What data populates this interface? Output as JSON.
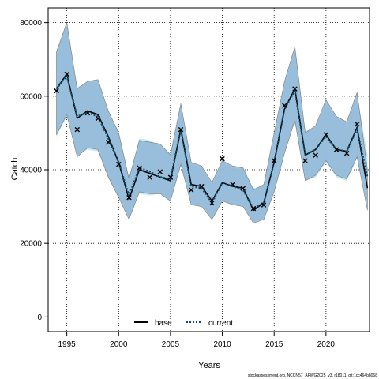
{
  "chart_data": {
    "type": "line",
    "title": "",
    "xlabel": "Years",
    "ylabel": "Catch",
    "xlim": [
      1993.2,
      2024.2
    ],
    "ylim": [
      -4000,
      84000
    ],
    "x_ticks": [
      1995,
      2000,
      2005,
      2010,
      2015,
      2020
    ],
    "y_ticks": [
      0,
      20000,
      40000,
      60000,
      80000
    ],
    "x_tick_labels": [
      "1995",
      "2000",
      "2005",
      "2010",
      "2015",
      "2020"
    ],
    "y_tick_labels": [
      "0",
      "20000",
      "40000",
      "60000",
      "80000"
    ],
    "grid": true,
    "legend_position": "bottom",
    "x": [
      1994,
      1995,
      1996,
      1997,
      1998,
      1999,
      2000,
      2001,
      2002,
      2003,
      2004,
      2005,
      2006,
      2007,
      2008,
      2009,
      2010,
      2011,
      2012,
      2013,
      2014,
      2015,
      2016,
      2017,
      2018,
      2019,
      2020,
      2021,
      2022,
      2023,
      2024
    ],
    "observed_marker": "×",
    "observed": [
      61500,
      66000,
      51000,
      55500,
      54000,
      47500,
      41500,
      32500,
      40500,
      38000,
      39500,
      38000,
      51000,
      34500,
      35500,
      31000,
      43000,
      36000,
      35000,
      29500,
      30500,
      42500,
      57500,
      62000,
      42500,
      44000,
      49500,
      45500,
      44500,
      52500,
      null
    ],
    "series": [
      {
        "name": "base",
        "color": "#000000",
        "style": "solid",
        "values": [
          62000,
          66000,
          54000,
          56000,
          55000,
          49000,
          42000,
          32000,
          40000,
          39000,
          38000,
          37000,
          51000,
          36000,
          35500,
          31500,
          36500,
          35500,
          35000,
          29000,
          31000,
          42000,
          56500,
          62000,
          44000,
          45500,
          49500,
          45500,
          45000,
          51500,
          35000
        ],
        "band_color": "#8fb6d6",
        "band_lower": [
          49500,
          55000,
          43500,
          46000,
          45500,
          38000,
          32500,
          26500,
          34000,
          33500,
          33500,
          31500,
          41500,
          30500,
          30000,
          26500,
          31500,
          30500,
          30000,
          25500,
          26500,
          34000,
          44500,
          53500,
          37000,
          38500,
          42500,
          38500,
          37500,
          43500,
          29000
        ],
        "band_upper": [
          72000,
          80000,
          62000,
          64000,
          64500,
          56000,
          50000,
          37500,
          48000,
          47500,
          47000,
          44000,
          58000,
          42000,
          41000,
          36500,
          42500,
          41000,
          40500,
          34500,
          36000,
          50000,
          64000,
          73500,
          50000,
          52000,
          59000,
          54500,
          53000,
          61000,
          40000
        ]
      },
      {
        "name": "current",
        "color": "#0b4f6c",
        "style": "dotted",
        "values": [
          62000,
          65500,
          54500,
          55500,
          54500,
          48500,
          42000,
          33000,
          40500,
          39500,
          38000,
          37500,
          51000,
          35500,
          35000,
          31000,
          36500,
          35500,
          34500,
          29500,
          31000,
          42000,
          56500,
          61500,
          44000,
          45500,
          49000,
          45500,
          45000,
          51000,
          38000
        ],
        "band_color": "#bfe3f2",
        "band_lower": [
          49000,
          54500,
          44000,
          45500,
          45000,
          38000,
          33000,
          27000,
          33500,
          33000,
          33500,
          32000,
          41000,
          30500,
          30500,
          26500,
          31500,
          30500,
          30000,
          26000,
          27000,
          34000,
          45000,
          53000,
          37000,
          38000,
          42000,
          38000,
          37000,
          43000,
          31000
        ],
        "band_upper": [
          71500,
          79500,
          62500,
          63500,
          64000,
          55500,
          50500,
          38000,
          48500,
          48000,
          46500,
          44500,
          58000,
          41500,
          40500,
          36000,
          42000,
          40500,
          40000,
          35000,
          35500,
          49500,
          63500,
          73000,
          50500,
          51500,
          58500,
          54000,
          52500,
          60500,
          44000
        ]
      }
    ]
  },
  "credit_text": "stockassessment.org, NCCN57_AFWG2025_v3, r18011, git:1cc464b8068"
}
